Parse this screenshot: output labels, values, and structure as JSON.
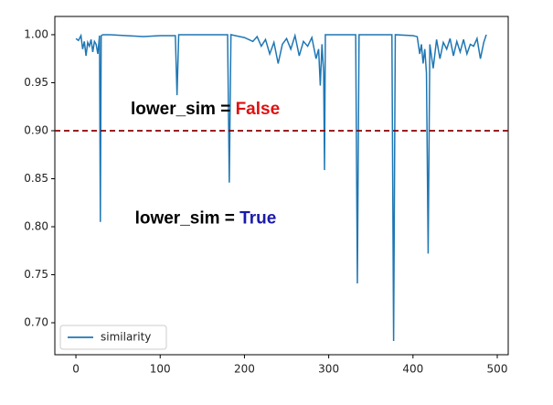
{
  "chart_data": {
    "type": "line",
    "x": [
      0,
      3,
      6,
      8,
      10,
      12,
      14,
      16,
      18,
      20,
      22,
      24,
      26,
      28,
      29,
      30,
      32,
      40,
      60,
      80,
      100,
      118,
      120,
      122,
      140,
      160,
      180,
      182,
      184,
      200,
      210,
      215,
      220,
      225,
      230,
      235,
      240,
      245,
      250,
      255,
      260,
      265,
      270,
      275,
      280,
      285,
      288,
      290,
      292,
      294,
      295,
      296,
      300,
      320,
      332,
      334,
      336,
      350,
      375,
      377,
      379,
      400,
      405,
      408,
      410,
      412,
      414,
      416,
      418,
      420,
      424,
      428,
      432,
      436,
      440,
      444,
      448,
      452,
      456,
      460,
      464,
      468,
      472,
      476,
      480,
      484,
      487
    ],
    "series": [
      {
        "name": "similarity",
        "color": "#1f77b4",
        "values": [
          0.996,
          0.994,
          0.999,
          0.985,
          0.993,
          0.978,
          0.992,
          0.988,
          0.995,
          0.982,
          0.993,
          0.99,
          0.98,
          0.999,
          0.805,
          0.999,
          1.0,
          1.0,
          0.999,
          0.998,
          0.999,
          0.999,
          0.937,
          1.0,
          1.0,
          1.0,
          1.0,
          0.846,
          1.0,
          0.997,
          0.993,
          0.998,
          0.988,
          0.995,
          0.98,
          0.992,
          0.97,
          0.99,
          0.996,
          0.985,
          0.999,
          0.978,
          0.993,
          0.988,
          0.997,
          0.975,
          0.985,
          0.947,
          0.99,
          0.96,
          0.859,
          1.0,
          1.0,
          1.0,
          1.0,
          0.741,
          1.0,
          1.0,
          1.0,
          0.681,
          1.0,
          0.999,
          0.998,
          0.98,
          0.99,
          0.97,
          0.985,
          0.96,
          0.772,
          0.99,
          0.965,
          0.995,
          0.975,
          0.992,
          0.985,
          0.996,
          0.978,
          0.993,
          0.982,
          0.995,
          0.98,
          0.99,
          0.988,
          0.996,
          0.975,
          0.992,
          1.0
        ]
      }
    ],
    "xlim": [
      -25,
      513
    ],
    "xticks": [
      0,
      100,
      200,
      300,
      400,
      500
    ],
    "ylim": [
      0.6667,
      1.019
    ],
    "yticks": [
      {
        "value": 0.7,
        "label": "0.70"
      },
      {
        "value": 0.75,
        "label": "0.75"
      },
      {
        "value": 0.8,
        "label": "0.80"
      },
      {
        "value": 0.85,
        "label": "0.85"
      },
      {
        "value": 0.9,
        "label": "0.90"
      },
      {
        "value": 0.95,
        "label": "0.95"
      },
      {
        "value": 1,
        "label": "1.00"
      }
    ],
    "threshold": {
      "value": 0.9,
      "color": "#8b0000"
    },
    "legend": "lower left",
    "annotations": [
      {
        "text": "lower_sim = ",
        "highlight": "False",
        "color": "#e01010",
        "x": 65,
        "y": 0.922
      },
      {
        "text": "lower_sim = ",
        "highlight": "True",
        "color": "#1a1aaa",
        "x": 70,
        "y": 0.808
      }
    ]
  }
}
